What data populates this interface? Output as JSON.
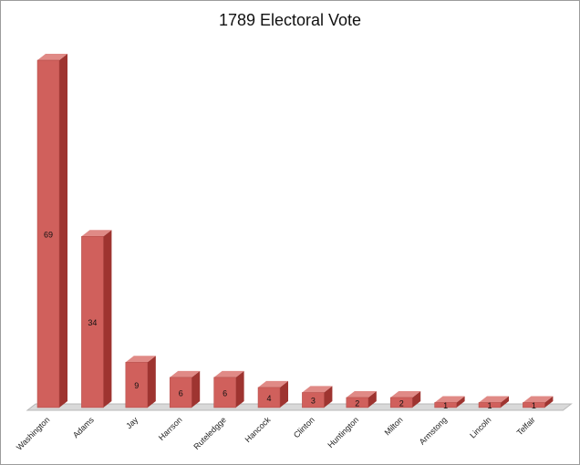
{
  "chart_data": {
    "type": "bar",
    "title": "1789 Electoral Vote",
    "categories": [
      "Washington",
      "Adams",
      "Jay",
      "Harrson",
      "Ruteledgge",
      "Hancock",
      "Clinton",
      "Huntington",
      "Milton",
      "Armstong",
      "Lincoln",
      "Telfair"
    ],
    "values": [
      69,
      34,
      9,
      6,
      6,
      4,
      3,
      2,
      2,
      1,
      1,
      1
    ],
    "xlabel": "",
    "ylabel": "",
    "ylim": [
      0,
      69
    ],
    "grid": false,
    "legend": "none",
    "colors": {
      "bar_front": "#d0605c",
      "bar_side": "#9e3430",
      "bar_top": "#e08a86",
      "floor": "#d9d9d9",
      "floor_edge": "#b8b8b8"
    }
  }
}
